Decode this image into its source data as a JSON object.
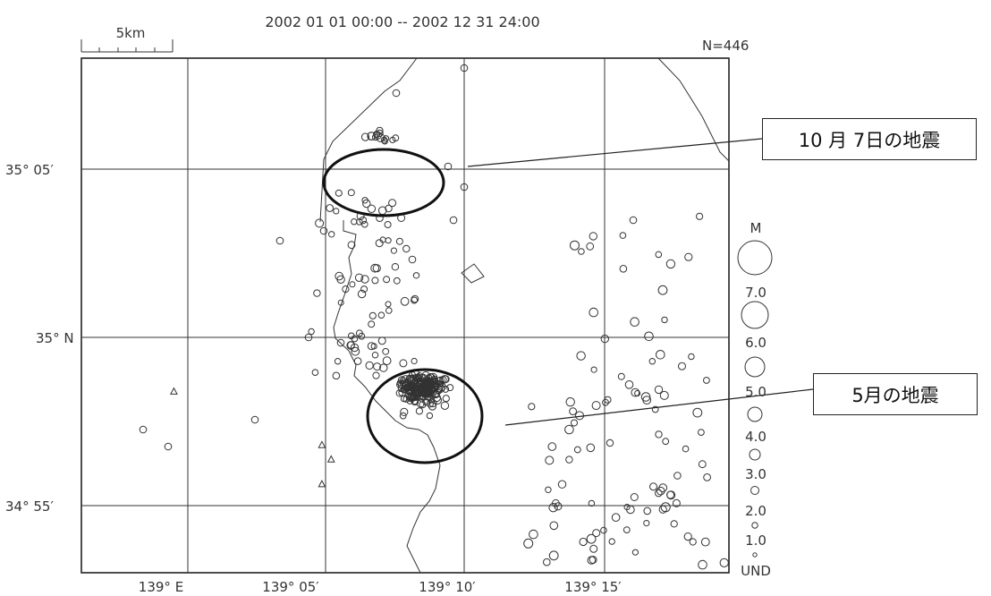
{
  "header": {
    "time_range": "2002 01 01 00:00 -- 2002 12 31 24:00",
    "count": "N=446",
    "scale_label": "5km"
  },
  "legend": {
    "title": "M",
    "labels": [
      "7.0",
      "6.0",
      "5.0",
      "4.0",
      "3.0",
      "2.0",
      "1.0",
      "UND"
    ]
  },
  "callouts": {
    "october": "10 月 7日の地震",
    "may": "5月の地震"
  },
  "chart_data": {
    "type": "scatter",
    "title": "2002 01 01 00:00 -- 2002 12 31 24:00",
    "count": "N=446",
    "lon_range": [
      138.95,
      139.3
    ],
    "lat_range": [
      34.87,
      35.12
    ],
    "x_ticks": [
      "139° E",
      "139° 05′",
      "139° 10′",
      "139° 15′"
    ],
    "y_ticks": [
      "35° 05′",
      "35° N",
      "34° 55′"
    ],
    "grid": true,
    "markers": {
      "earthquake": "circle (size ~ magnitude)",
      "undetermined": "triangle"
    },
    "clusters": [
      {
        "label": "10 月 7日の地震",
        "lon": 139.12,
        "lat": 35.083
      },
      {
        "label": "5月の地震",
        "lon": 139.135,
        "lat": 34.96
      }
    ],
    "triangles": [
      {
        "lon": 139.0,
        "lat": 34.958
      },
      {
        "lon": 139.08,
        "lat": 34.932
      },
      {
        "lon": 139.085,
        "lat": 34.925
      },
      {
        "lon": 139.08,
        "lat": 34.913
      }
    ],
    "legend_magnitudes": [
      "7.0",
      "6.0",
      "5.0",
      "4.0",
      "3.0",
      "2.0",
      "1.0",
      "UND"
    ]
  }
}
